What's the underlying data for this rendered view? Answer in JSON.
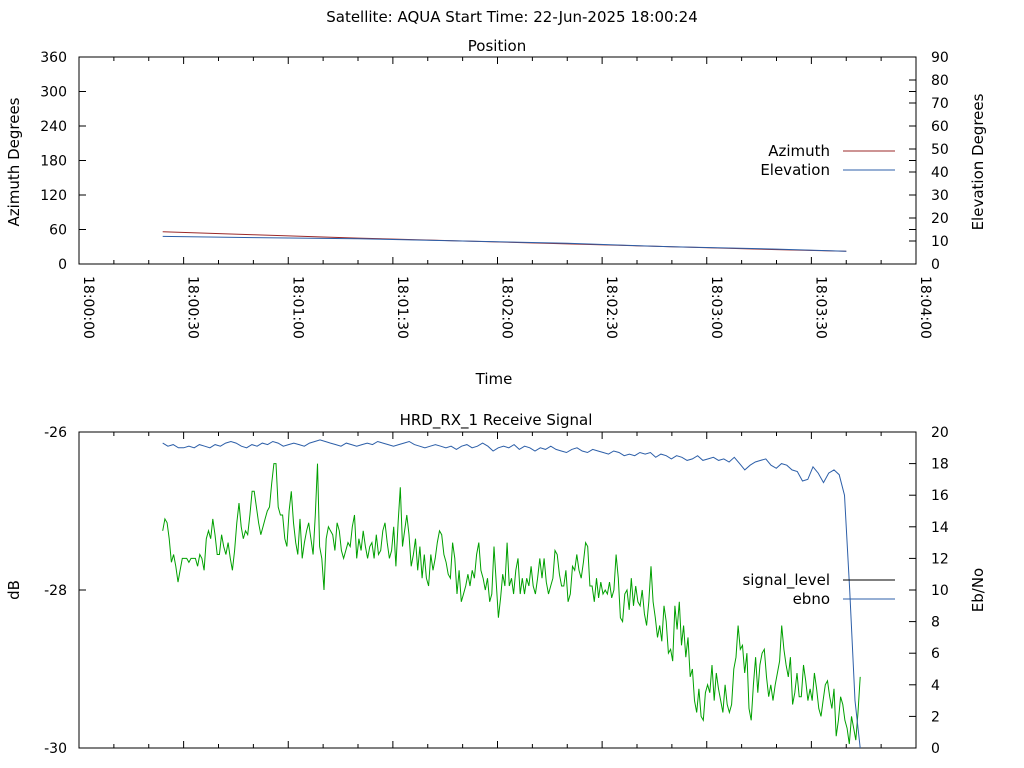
{
  "page_title": "Satellite: AQUA    Start Time: 22-Jun-2025 18:00:24",
  "chart_data": [
    {
      "type": "line",
      "title": "Position",
      "xlabel": "Time",
      "ylabel": "Azimuth Degrees",
      "y2label": "Elevation Degrees",
      "xlim": [
        "18:00:00",
        "18:04:00"
      ],
      "x_ticks": [
        "18:00:00",
        "18:00:30",
        "18:01:00",
        "18:01:30",
        "18:02:00",
        "18:02:30",
        "18:03:00",
        "18:03:30",
        "18:04:00"
      ],
      "ylim": [
        0,
        360
      ],
      "y_ticks": [
        0,
        60,
        120,
        180,
        240,
        300,
        360
      ],
      "y2lim": [
        0,
        90
      ],
      "y2_ticks": [
        0,
        10,
        20,
        30,
        40,
        50,
        60,
        70,
        80,
        90
      ],
      "legend_position": "right",
      "grid": false,
      "series": [
        {
          "name": "Azimuth",
          "axis": "left",
          "color": "#9b2a2a",
          "x": [
            "18:00:24",
            "18:00:50",
            "18:01:20",
            "18:01:50",
            "18:02:20",
            "18:02:50",
            "18:03:20",
            "18:03:40"
          ],
          "y": [
            56,
            51,
            45,
            40,
            35,
            30,
            25,
            22
          ]
        },
        {
          "name": "Elevation",
          "axis": "right",
          "color": "#2d5fa8",
          "x": [
            "18:00:24",
            "18:00:50",
            "18:01:20",
            "18:01:50",
            "18:02:20",
            "18:02:50",
            "18:03:20",
            "18:03:40"
          ],
          "y": [
            12,
            11.5,
            11,
            10,
            9,
            7.5,
            6.5,
            5.5
          ]
        }
      ]
    },
    {
      "type": "line",
      "title": "HRD_RX_1 Receive Signal",
      "ylabel": "dB",
      "y2label": "Eb/No",
      "xlim": [
        "18:00:00",
        "18:04:00"
      ],
      "ylim": [
        -30,
        -26
      ],
      "y_ticks": [
        -30,
        -28,
        -26
      ],
      "y2lim": [
        0,
        20
      ],
      "y2_ticks": [
        0,
        2,
        4,
        6,
        8,
        10,
        12,
        14,
        16,
        18,
        20
      ],
      "legend_position": "right",
      "grid": false,
      "legend": [
        {
          "name": "signal_level",
          "color": "#000000"
        },
        {
          "name": "ebno",
          "color": "#2d5fa8"
        }
      ],
      "series": [
        {
          "name": "signal_level",
          "axis": "left",
          "color": "#00a000",
          "x_range": [
            "18:00:24",
            "18:03:44"
          ],
          "y": [
            -27.25,
            -27.1,
            -27.15,
            -27.35,
            -27.65,
            -27.55,
            -27.7,
            -27.9,
            -27.75,
            -27.6,
            -27.6,
            -27.6,
            -27.65,
            -27.6,
            -27.6,
            -27.6,
            -27.7,
            -27.55,
            -27.6,
            -27.75,
            -27.35,
            -27.25,
            -27.35,
            -27.1,
            -27.3,
            -27.55,
            -27.55,
            -27.3,
            -27.45,
            -27.55,
            -27.4,
            -27.6,
            -27.75,
            -27.5,
            -27.15,
            -26.9,
            -27.2,
            -27.35,
            -27.25,
            -27.3,
            -27.05,
            -26.75,
            -26.75,
            -26.95,
            -27.15,
            -27.3,
            -27.2,
            -27.1,
            -27.0,
            -26.95,
            -26.65,
            -26.4,
            -26.4,
            -26.95,
            -27.05,
            -27.05,
            -27.35,
            -27.45,
            -27.0,
            -26.75,
            -27.15,
            -27.4,
            -27.55,
            -27.1,
            -27.6,
            -27.4,
            -27.25,
            -27.15,
            -27.35,
            -27.55,
            -27.05,
            -26.4,
            -27.45,
            -27.6,
            -28.0,
            -27.35,
            -27.2,
            -27.25,
            -27.3,
            -27.5,
            -27.15,
            -27.25,
            -27.5,
            -27.6,
            -27.5,
            -27.4,
            -27.45,
            -27.2,
            -27.05,
            -27.6,
            -27.35,
            -27.5,
            -27.25,
            -27.45,
            -27.6,
            -27.45,
            -27.4,
            -27.6,
            -27.3,
            -27.55,
            -27.5,
            -27.25,
            -27.15,
            -27.4,
            -27.6,
            -27.5,
            -27.2,
            -27.7,
            -27.15,
            -26.7,
            -27.45,
            -27.25,
            -27.05,
            -27.3,
            -27.7,
            -27.55,
            -27.35,
            -27.75,
            -27.45,
            -27.85,
            -27.55,
            -27.85,
            -27.95,
            -27.55,
            -27.75,
            -27.6,
            -27.4,
            -27.25,
            -27.3,
            -27.55,
            -27.65,
            -27.8,
            -27.85,
            -27.4,
            -27.6,
            -28.05,
            -27.75,
            -28.15,
            -28.05,
            -27.95,
            -27.8,
            -27.95,
            -27.75,
            -27.85,
            -27.55,
            -27.4,
            -27.75,
            -27.85,
            -28.0,
            -27.85,
            -28.15,
            -28.05,
            -27.45,
            -27.9,
            -28.35,
            -28.1,
            -27.8,
            -27.95,
            -27.4,
            -27.95,
            -27.85,
            -28.05,
            -27.75,
            -27.6,
            -28.05,
            -27.85,
            -28.05,
            -27.85,
            -27.95,
            -27.7,
            -27.95,
            -28.05,
            -27.85,
            -27.6,
            -27.85,
            -27.6,
            -27.9,
            -28.05,
            -27.95,
            -27.85,
            -27.5,
            -27.55,
            -27.8,
            -27.95,
            -27.95,
            -27.75,
            -28.15,
            -28.05,
            -27.7,
            -27.75,
            -27.55,
            -27.75,
            -27.85,
            -27.65,
            -27.4,
            -27.45,
            -27.95,
            -27.95,
            -28.15,
            -27.85,
            -28.1,
            -27.9,
            -28.05,
            -28.0,
            -28.05,
            -27.9,
            -28.1,
            -28.0,
            -27.55,
            -27.85,
            -28.35,
            -28.4,
            -28.05,
            -28.0,
            -28.25,
            -27.85,
            -28.2,
            -27.95,
            -28.15,
            -28.2,
            -28.0,
            -28.3,
            -28.45,
            -28.15,
            -27.7,
            -28.15,
            -28.35,
            -28.6,
            -28.45,
            -28.65,
            -28.2,
            -28.4,
            -28.8,
            -28.75,
            -28.9,
            -28.2,
            -28.5,
            -28.15,
            -28.7,
            -28.45,
            -28.85,
            -28.6,
            -29.1,
            -29.0,
            -29.4,
            -29.55,
            -29.25,
            -29.6,
            -29.65,
            -29.3,
            -29.2,
            -29.3,
            -28.95,
            -29.4,
            -29.05,
            -29.25,
            -29.4,
            -29.55,
            -29.2,
            -29.45,
            -29.55,
            -29.45,
            -29.0,
            -28.85,
            -28.45,
            -28.75,
            -28.7,
            -29.05,
            -28.8,
            -29.5,
            -29.65,
            -29.2,
            -28.85,
            -29.3,
            -28.95,
            -28.8,
            -28.75,
            -29.1,
            -29.35,
            -29.2,
            -29.4,
            -29.2,
            -29.05,
            -28.9,
            -28.45,
            -28.75,
            -28.95,
            -29.1,
            -28.85,
            -29.45,
            -29.3,
            -29.05,
            -29.35,
            -29.35,
            -28.95,
            -29.15,
            -29.4,
            -29.25,
            -29.4,
            -29.05,
            -29.25,
            -29.5,
            -29.6,
            -29.4,
            -29.2,
            -29.15,
            -29.35,
            -29.5,
            -29.25,
            -29.85,
            -29.65,
            -29.35,
            -29.45,
            -29.65,
            -29.75,
            -29.95,
            -29.6,
            -29.75,
            -29.9,
            -29.55,
            -29.1
          ]
        },
        {
          "name": "ebno",
          "axis": "right",
          "color": "#2d5fa8",
          "x_range": [
            "18:00:24",
            "18:03:44"
          ],
          "y": [
            19.3,
            19.1,
            19.2,
            19.0,
            19.0,
            19.1,
            19.0,
            19.2,
            19.1,
            19.0,
            19.2,
            19.1,
            19.3,
            19.4,
            19.3,
            19.1,
            19.0,
            19.2,
            19.1,
            19.3,
            19.2,
            19.4,
            19.3,
            19.1,
            19.2,
            19.3,
            19.2,
            19.1,
            19.3,
            19.4,
            19.5,
            19.4,
            19.3,
            19.2,
            19.1,
            19.3,
            19.2,
            19.1,
            19.2,
            19.3,
            19.2,
            19.4,
            19.3,
            19.2,
            19.1,
            19.2,
            19.3,
            19.4,
            19.2,
            19.1,
            19.0,
            19.1,
            19.2,
            19.1,
            19.0,
            19.1,
            18.9,
            19.1,
            19.2,
            19.0,
            19.1,
            19.3,
            19.1,
            18.8,
            19.0,
            19.1,
            19.0,
            19.2,
            18.9,
            19.1,
            19.0,
            18.8,
            19.0,
            18.9,
            19.1,
            18.9,
            18.8,
            18.7,
            18.9,
            19.0,
            18.8,
            18.7,
            18.9,
            18.8,
            18.7,
            18.6,
            18.8,
            18.7,
            18.5,
            18.6,
            18.5,
            18.7,
            18.6,
            18.7,
            18.4,
            18.6,
            18.5,
            18.3,
            18.5,
            18.4,
            18.2,
            18.3,
            18.5,
            18.2,
            18.3,
            18.4,
            18.2,
            18.3,
            18.1,
            18.4,
            18.0,
            17.6,
            17.9,
            18.1,
            18.2,
            18.3,
            17.9,
            17.7,
            18.0,
            17.9,
            17.6,
            17.5,
            16.9,
            17.0,
            17.8,
            17.4,
            16.8,
            17.4,
            17.6,
            17.3,
            16.0,
            10.0,
            3.0,
            0.0
          ]
        }
      ]
    }
  ]
}
